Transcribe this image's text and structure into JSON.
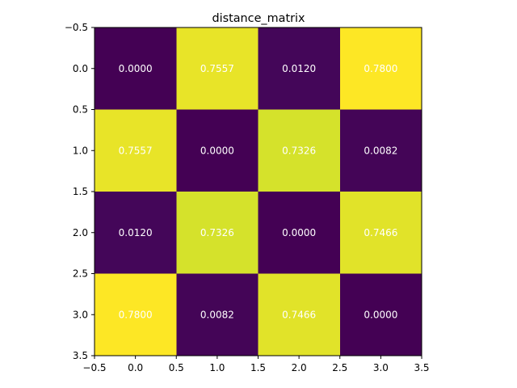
{
  "chart_data": {
    "type": "heatmap",
    "title": "distance_matrix",
    "xlabel": "",
    "ylabel": "",
    "colormap": "viridis",
    "value_range": [
      0.0,
      0.78
    ],
    "xlim": [
      -0.5,
      3.5
    ],
    "ylim": [
      3.5,
      -0.5
    ],
    "xticks": [
      -0.5,
      0.0,
      0.5,
      1.0,
      1.5,
      2.0,
      2.5,
      3.0,
      3.5
    ],
    "xtick_labels": [
      "−0.5",
      "0.0",
      "0.5",
      "1.0",
      "1.5",
      "2.0",
      "2.5",
      "3.0",
      "3.5"
    ],
    "yticks": [
      -0.5,
      0.0,
      0.5,
      1.0,
      1.5,
      2.0,
      2.5,
      3.0,
      3.5
    ],
    "ytick_labels": [
      "−0.5",
      "0.0",
      "0.5",
      "1.0",
      "1.5",
      "2.0",
      "2.5",
      "3.0",
      "3.5"
    ],
    "matrix": [
      [
        0.0,
        0.7557,
        0.012,
        0.78
      ],
      [
        0.7557,
        0.0,
        0.7326,
        0.0082
      ],
      [
        0.012,
        0.7326,
        0.0,
        0.7466
      ],
      [
        0.78,
        0.0082,
        0.7466,
        0.0
      ]
    ],
    "cell_labels": [
      [
        "0.0000",
        "0.7557",
        "0.0120",
        "0.7800"
      ],
      [
        "0.7557",
        "0.0000",
        "0.7326",
        "0.0082"
      ],
      [
        "0.0120",
        "0.7326",
        "0.0000",
        "0.7466"
      ],
      [
        "0.7800",
        "0.0082",
        "0.7466",
        "0.0000"
      ]
    ],
    "cell_label_color": "#ffffff",
    "grid": false
  }
}
